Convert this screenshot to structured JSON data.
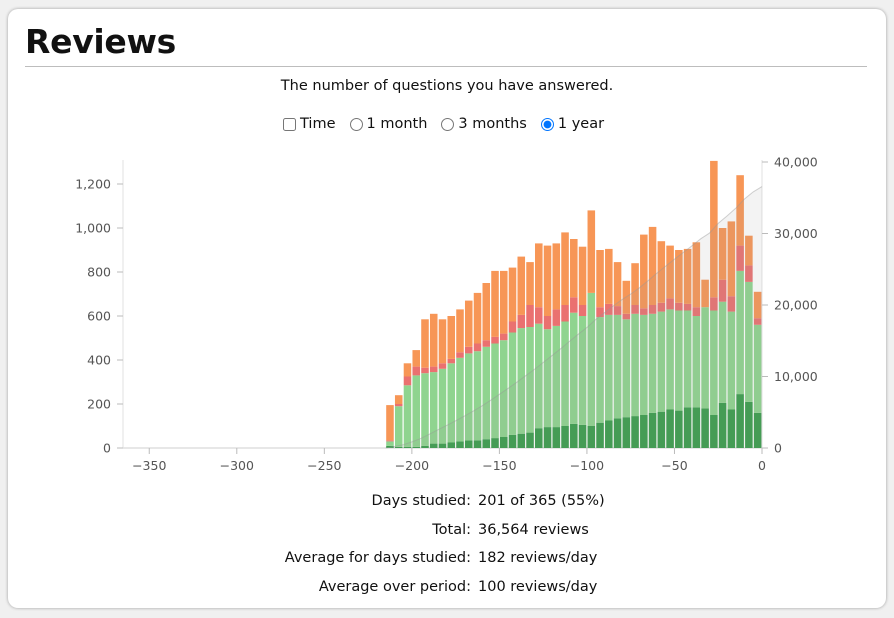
{
  "header": {
    "title": "Reviews"
  },
  "subtitle": "The number of questions you have answered.",
  "controls": [
    {
      "type": "checkbox",
      "label": "Time",
      "checked": false
    },
    {
      "type": "radio",
      "label": "1 month",
      "checked": false
    },
    {
      "type": "radio",
      "label": "3 months",
      "checked": false
    },
    {
      "type": "radio",
      "label": "1 year",
      "checked": true
    }
  ],
  "stats": [
    {
      "label": "Days studied:",
      "value": "201 of 365 (55%)"
    },
    {
      "label": "Total:",
      "value": "36,564 reviews"
    },
    {
      "label": "Average for days studied:",
      "value": "182 reviews/day"
    },
    {
      "label": "Average over period:",
      "value": "100 reviews/day"
    }
  ],
  "chart_data": {
    "type": "bar",
    "stacked": true,
    "x_ticks": [
      "−350",
      "−300",
      "−250",
      "−200",
      "−150",
      "−100",
      "−50",
      "0"
    ],
    "y_ticks": [
      "0",
      "200",
      "400",
      "600",
      "800",
      "1,000",
      "1,200"
    ],
    "y2_ticks": [
      "0",
      "10,000",
      "20,000",
      "30,000",
      "40,000"
    ],
    "xlim": [
      -365,
      0
    ],
    "ylim": [
      0,
      1300
    ],
    "y2lim": [
      0,
      40000
    ],
    "bin_width_days": 5,
    "x": [
      -215,
      -210,
      -205,
      -200,
      -195,
      -190,
      -185,
      -180,
      -175,
      -170,
      -165,
      -160,
      -155,
      -150,
      -145,
      -140,
      -135,
      -130,
      -125,
      -120,
      -115,
      -110,
      -105,
      -100,
      -95,
      -90,
      -85,
      -80,
      -75,
      -70,
      -65,
      -60,
      -55,
      -50,
      -45,
      -40,
      -35,
      -30,
      -25,
      -20,
      -15,
      -10,
      -5
    ],
    "series": [
      {
        "color": "#3a9d4c",
        "values": [
          10,
          5,
          5,
          5,
          10,
          20,
          20,
          25,
          30,
          35,
          35,
          40,
          45,
          50,
          60,
          65,
          70,
          90,
          95,
          95,
          100,
          110,
          105,
          100,
          115,
          125,
          135,
          140,
          145,
          150,
          160,
          165,
          175,
          170,
          185,
          185,
          180,
          150,
          205,
          175,
          245,
          210,
          160
        ]
      },
      {
        "color": "#8fd48f",
        "values": [
          20,
          185,
          280,
          325,
          330,
          325,
          340,
          360,
          380,
          395,
          405,
          420,
          430,
          440,
          465,
          480,
          480,
          475,
          445,
          460,
          475,
          505,
          495,
          605,
          480,
          480,
          470,
          445,
          465,
          455,
          450,
          455,
          455,
          455,
          440,
          415,
          460,
          475,
          460,
          445,
          560,
          545,
          400
        ]
      },
      {
        "color": "#ea7170",
        "values": [
          5,
          10,
          40,
          40,
          25,
          25,
          25,
          20,
          25,
          30,
          35,
          30,
          30,
          30,
          50,
          60,
          100,
          75,
          60,
          75,
          75,
          70,
          50,
          0,
          45,
          50,
          40,
          25,
          40,
          30,
          40,
          40,
          50,
          35,
          30,
          40,
          0,
          60,
          100,
          70,
          115,
          75,
          30
        ]
      },
      {
        "color": "#f79656",
        "values": [
          160,
          40,
          60,
          75,
          220,
          240,
          200,
          195,
          195,
          210,
          230,
          260,
          300,
          285,
          245,
          265,
          195,
          290,
          320,
          300,
          330,
          265,
          265,
          375,
          260,
          250,
          200,
          150,
          190,
          335,
          355,
          280,
          240,
          240,
          250,
          295,
          125,
          620,
          235,
          340,
          320,
          135,
          120
        ]
      }
    ],
    "cumulative": {
      "color": "#999999",
      "end_value": 36564
    }
  }
}
